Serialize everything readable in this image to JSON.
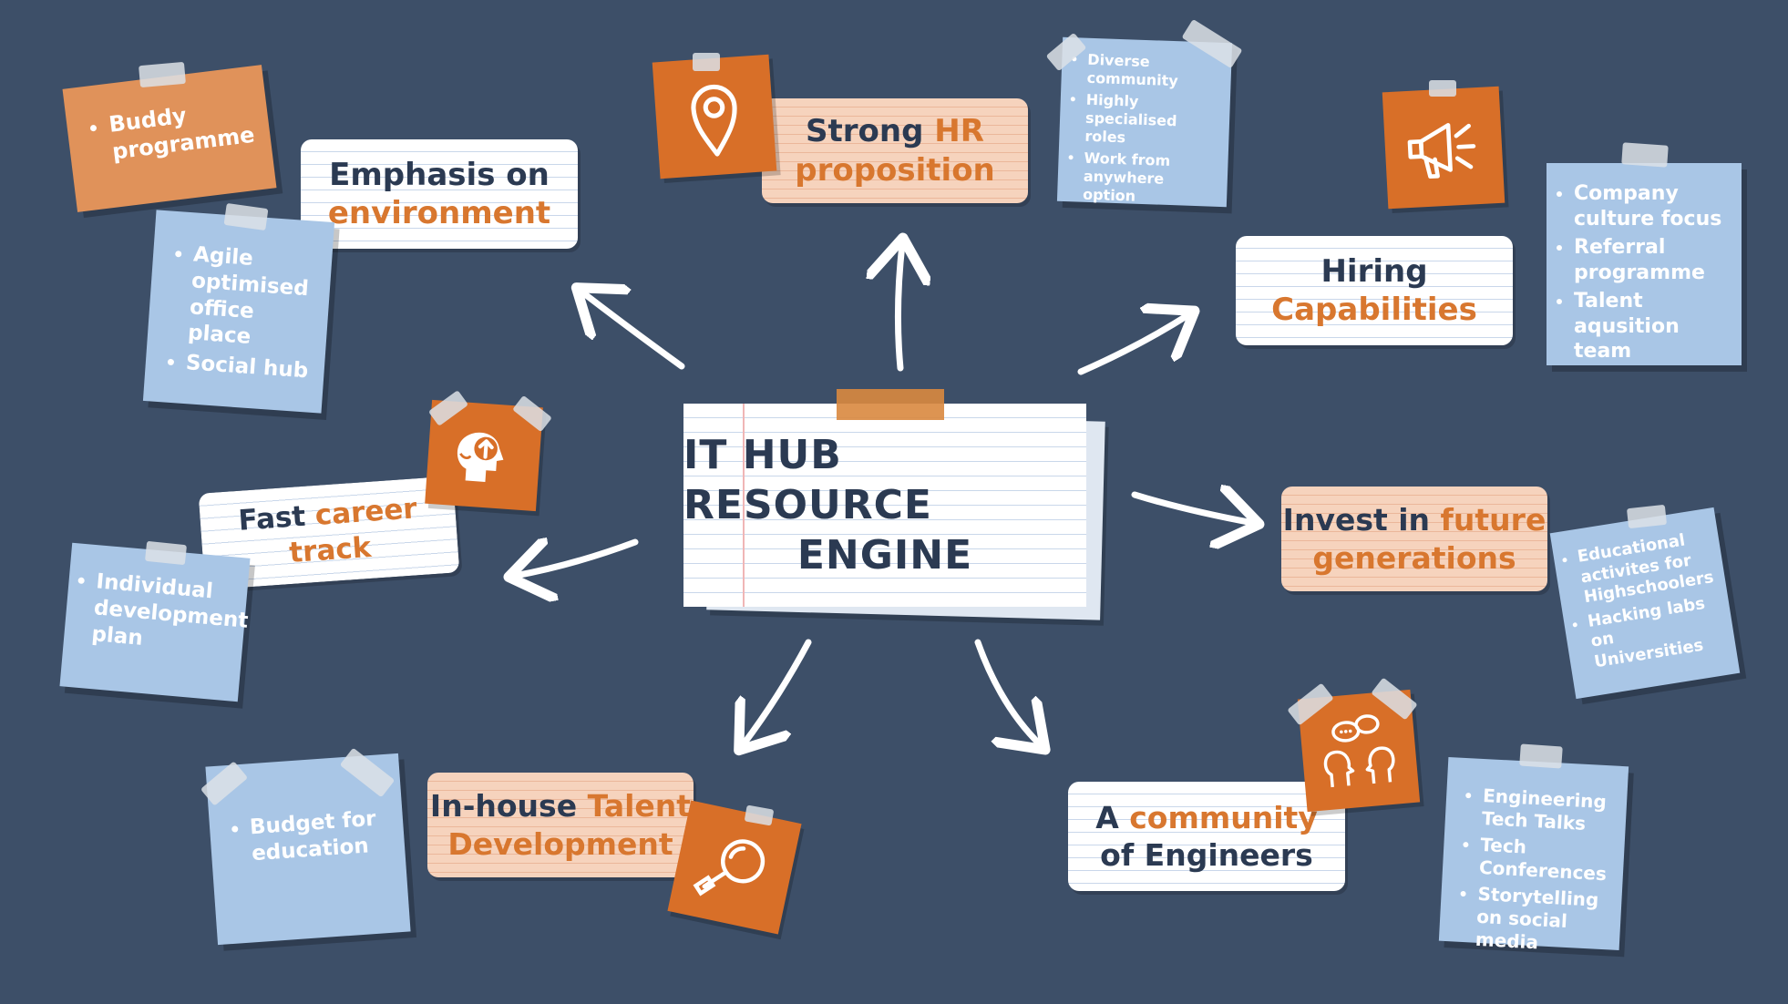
{
  "center": {
    "line1": "IT HUB RESOURCE",
    "line2": "ENGINE"
  },
  "nodes": {
    "environment": {
      "pre": "Emphasis on",
      "accent": "environment"
    },
    "hr": {
      "pre": "Strong ",
      "accent1": "HR",
      "accent2": "proposition"
    },
    "hiring": {
      "pre": "Hiring",
      "accent": "Capabilities"
    },
    "future": {
      "pre": "Invest in ",
      "accent1": "future",
      "accent2": "generations"
    },
    "community": {
      "pre": "A ",
      "accent": "community",
      "post": "of Engineers"
    },
    "talent": {
      "pre": "In-house ",
      "accent1": "Talent",
      "accent2": "Development"
    },
    "career": {
      "pre": "Fast ",
      "accent1": "career",
      "accent2": "track"
    }
  },
  "notes": {
    "buddy": [
      "Buddy programme"
    ],
    "agile": [
      "Agile optimised office place",
      "Social hub"
    ],
    "hr": [
      "Diverse community",
      "Highly specialised roles",
      "Work from anywhere option"
    ],
    "hiring": [
      "Company culture focus",
      "Referral programme",
      "Talent aqusition team"
    ],
    "future": [
      "Educational activites for Highschoolers",
      "Hacking labs on Universities"
    ],
    "community": [
      "Engineering Tech Talks",
      "Tech Conferences",
      "Storytelling on social media"
    ],
    "talent": [
      "Budget for education"
    ],
    "career": [
      "Individual development plan"
    ]
  },
  "icons": [
    "location-pin-icon",
    "megaphone-icon",
    "head-growth-icon",
    "conversation-icon",
    "magnifier-icon"
  ],
  "colors": {
    "background": "#3d4f68",
    "accent": "#d8772f",
    "text": "#2b3a52",
    "note_blue": "#a9c6e6",
    "note_orange": "#e0925a",
    "icon_square": "#d86f28"
  }
}
